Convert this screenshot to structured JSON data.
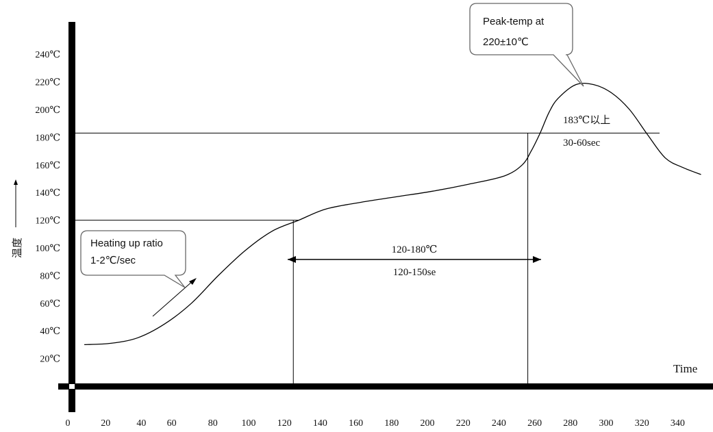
{
  "chart_data": {
    "type": "line",
    "title": "",
    "xlabel": "Time",
    "ylabel": "温度",
    "xlim": [
      0,
      350
    ],
    "ylim": [
      0,
      260
    ],
    "x_ticks": [
      "0",
      "20",
      "40",
      "60",
      "80",
      "100",
      "120",
      "140",
      "160",
      "180",
      "200",
      "220",
      "240",
      "260",
      "280",
      "300",
      "320",
      "340"
    ],
    "y_ticks": [
      "20℃",
      "40℃",
      "60℃",
      "80℃",
      "100℃",
      "120℃",
      "140℃",
      "160℃",
      "180℃",
      "200℃",
      "220℃",
      "240℃"
    ],
    "series": [
      {
        "name": "",
        "x": [
          5,
          20,
          35,
          50,
          65,
          80,
          95,
          110,
          125,
          140,
          160,
          180,
          200,
          220,
          240,
          250,
          255,
          260,
          265,
          270,
          280,
          290,
          300,
          310,
          320,
          330,
          340,
          350
        ],
        "y": [
          30,
          31,
          35,
          45,
          60,
          80,
          98,
          112,
          120,
          128,
          133,
          137,
          141,
          146,
          152,
          160,
          170,
          183,
          198,
          208,
          218,
          218,
          212,
          200,
          182,
          165,
          158,
          153
        ]
      }
    ],
    "reference_lines": {
      "horizontal": [
        183,
        120
      ],
      "vertical": [
        125,
        260
      ]
    },
    "annotations": {
      "heating": {
        "line1": "Heating up ratio",
        "line2": "1-2℃/sec"
      },
      "peak": {
        "line1": "Peak-temp at",
        "line2": "220±10℃"
      },
      "over183": {
        "line1": "183℃以上",
        "line2": "30-60sec"
      },
      "soak": {
        "line1": "120-180℃",
        "line2": "120-150se"
      }
    }
  }
}
